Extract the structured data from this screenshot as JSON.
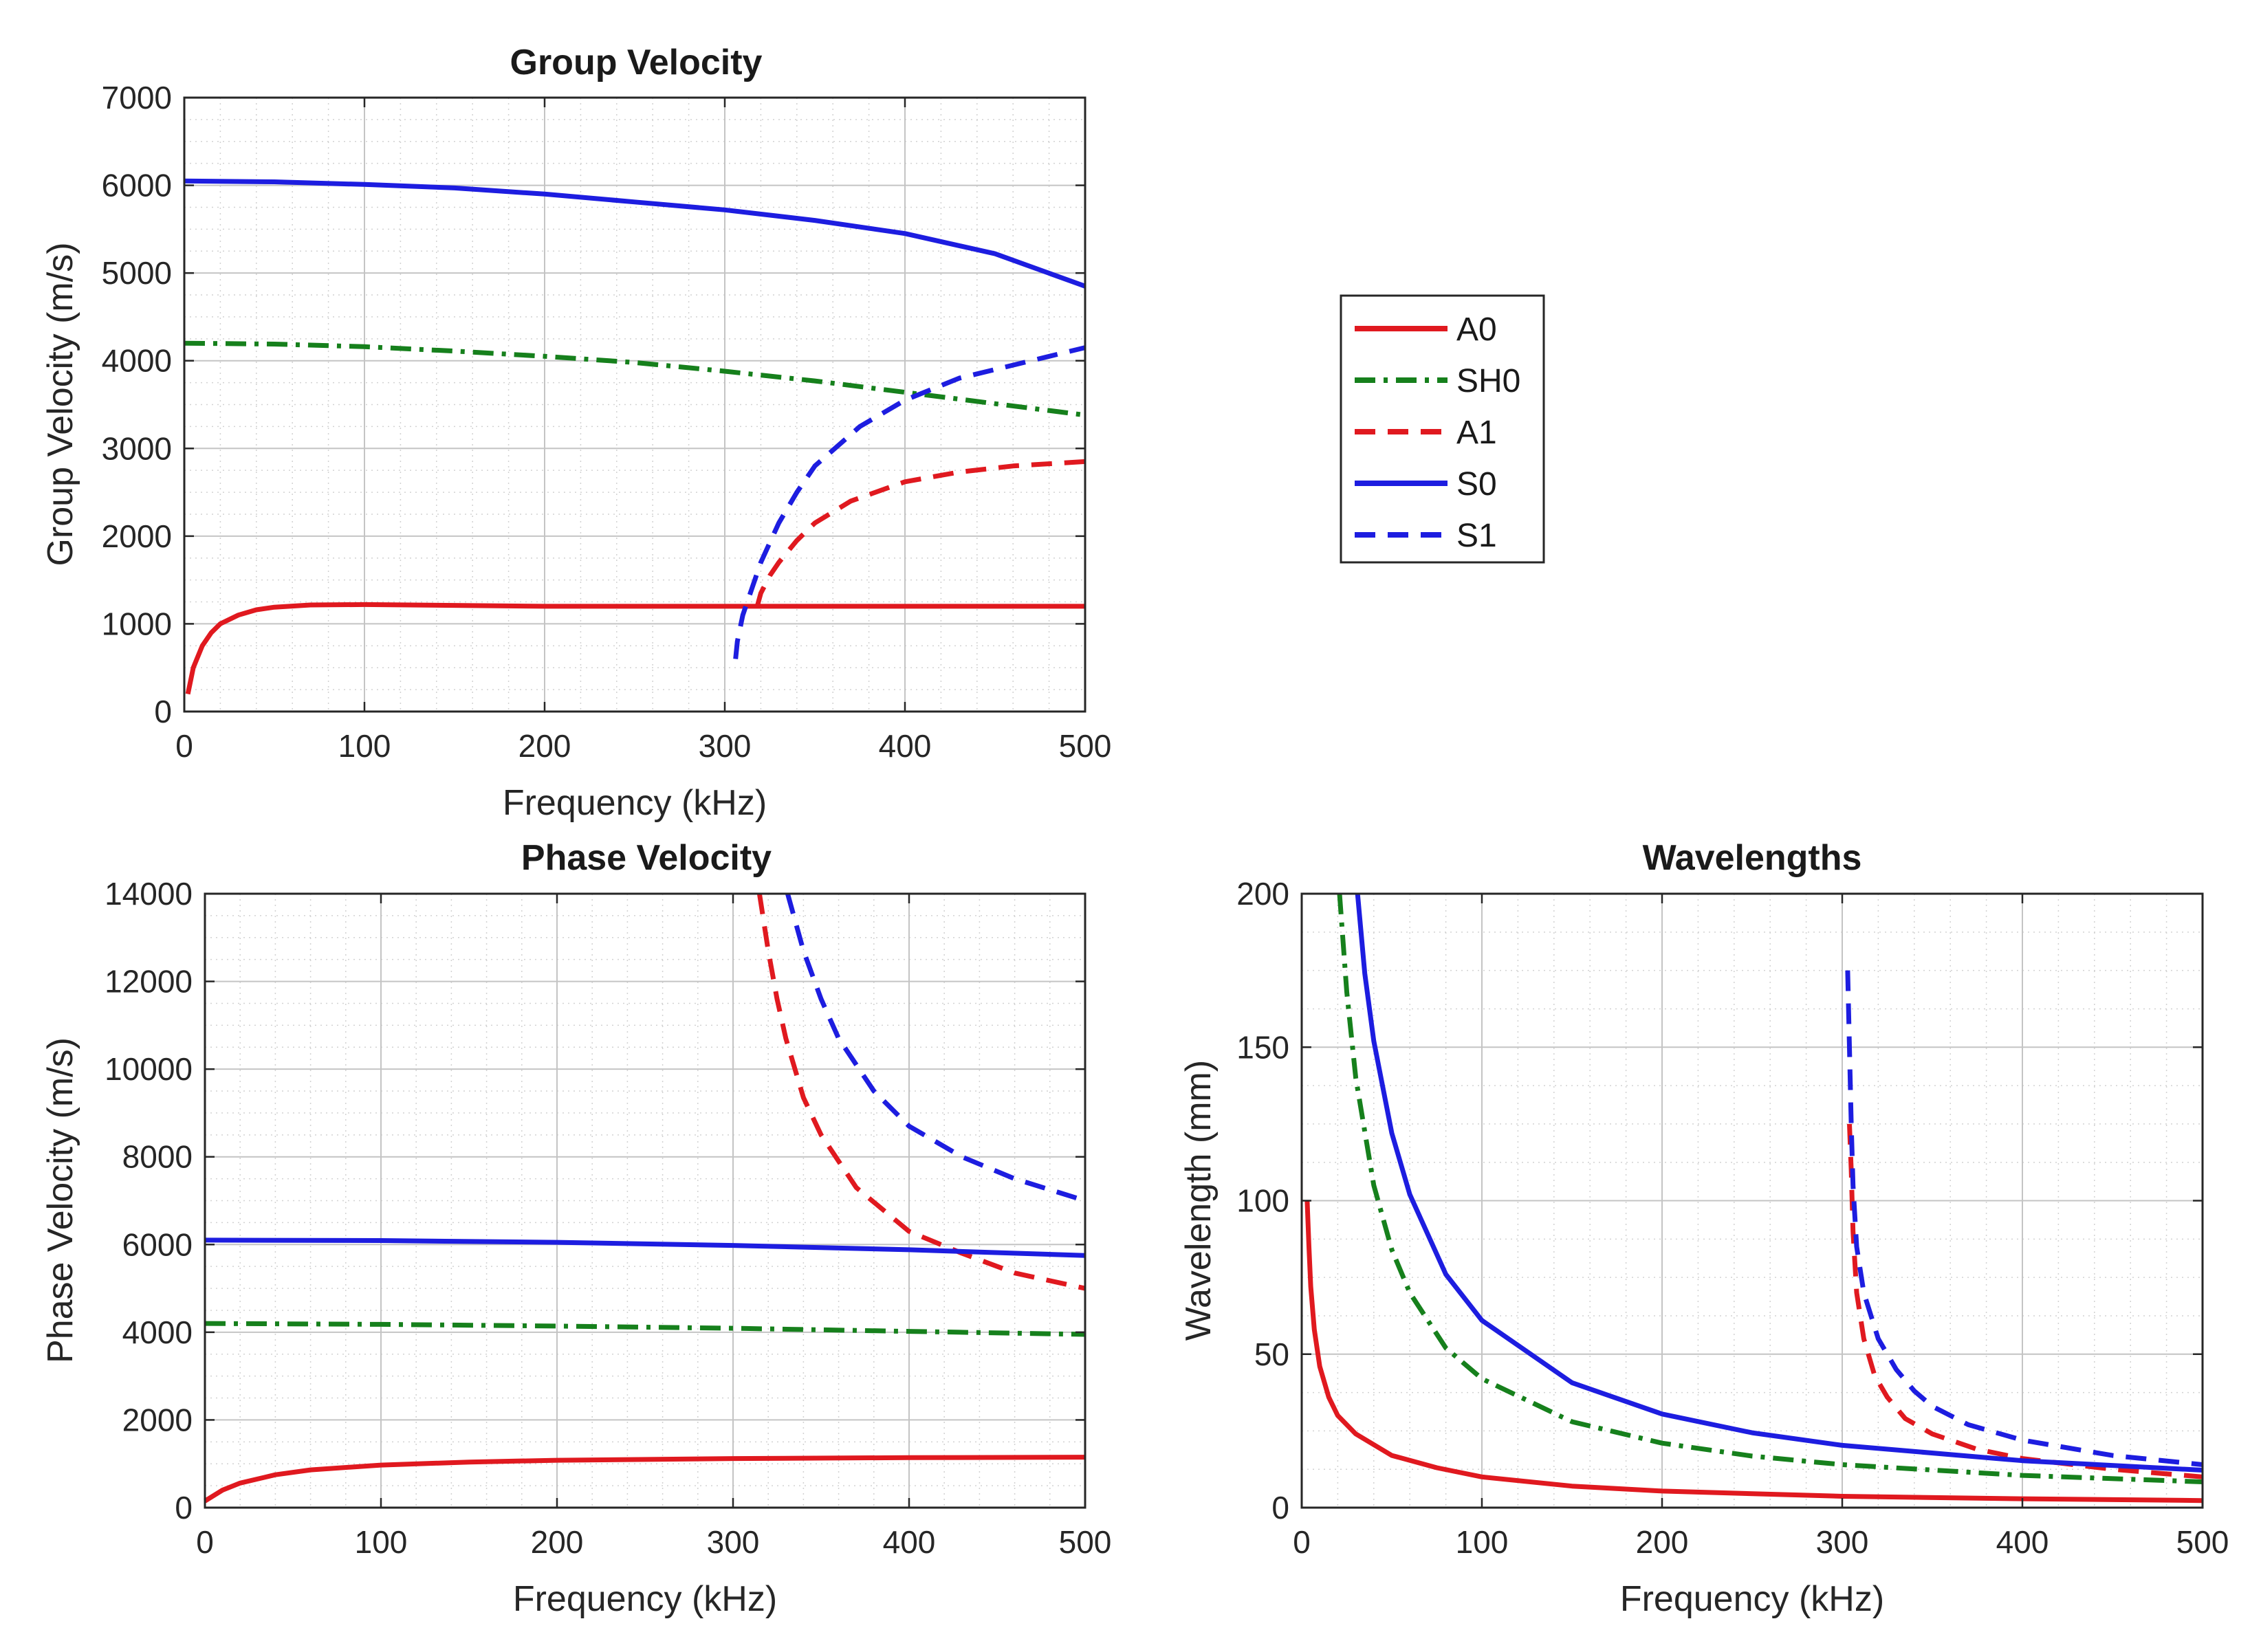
{
  "figure": {
    "legend_position": "right of top panel"
  },
  "legend": [
    {
      "label": "A0",
      "color": "#e0191f",
      "style": "solid"
    },
    {
      "label": "SH0",
      "color": "#16801c",
      "style": "dashdot"
    },
    {
      "label": "A1",
      "color": "#e0191f",
      "style": "dashed"
    },
    {
      "label": "S0",
      "color": "#1d1de0",
      "style": "solid"
    },
    {
      "label": "S1",
      "color": "#1d1de0",
      "style": "dashed"
    }
  ],
  "chart_data": [
    {
      "id": "group",
      "type": "line",
      "title": "Group Velocity",
      "xlabel": "Frequency (kHz)",
      "ylabel": "Group Velocity (m/s)",
      "xlim": [
        0,
        500
      ],
      "ylim": [
        0,
        7000
      ],
      "xticks": [
        0,
        100,
        200,
        300,
        400,
        500
      ],
      "yticks": [
        0,
        1000,
        2000,
        3000,
        4000,
        5000,
        6000,
        7000
      ],
      "grid": true,
      "series": [
        {
          "name": "A0",
          "color": "#e0191f",
          "style": "solid",
          "x": [
            2,
            5,
            10,
            15,
            20,
            30,
            40,
            50,
            70,
            100,
            150,
            200,
            300,
            400,
            500
          ],
          "y": [
            200,
            500,
            750,
            900,
            1000,
            1100,
            1160,
            1190,
            1215,
            1220,
            1210,
            1200,
            1200,
            1200,
            1200
          ]
        },
        {
          "name": "SH0",
          "color": "#16801c",
          "style": "dashdot",
          "x": [
            0,
            50,
            100,
            150,
            200,
            250,
            300,
            350,
            400,
            450,
            500
          ],
          "y": [
            4200,
            4190,
            4160,
            4110,
            4050,
            3980,
            3880,
            3770,
            3640,
            3510,
            3380
          ]
        },
        {
          "name": "A1",
          "color": "#e0191f",
          "style": "dashed",
          "x": [
            318,
            320,
            325,
            330,
            340,
            350,
            370,
            400,
            430,
            460,
            500
          ],
          "y": [
            1200,
            1350,
            1550,
            1700,
            1950,
            2150,
            2400,
            2620,
            2730,
            2800,
            2850
          ]
        },
        {
          "name": "S0",
          "color": "#1d1de0",
          "style": "solid",
          "x": [
            0,
            50,
            100,
            150,
            200,
            250,
            300,
            350,
            400,
            450,
            500
          ],
          "y": [
            6050,
            6040,
            6010,
            5970,
            5900,
            5810,
            5720,
            5600,
            5450,
            5220,
            4850
          ]
        },
        {
          "name": "S1",
          "color": "#1d1de0",
          "style": "dashed",
          "x": [
            306,
            307,
            310,
            315,
            320,
            330,
            340,
            350,
            375,
            400,
            430,
            460,
            500
          ],
          "y": [
            600,
            800,
            1100,
            1400,
            1700,
            2150,
            2500,
            2800,
            3250,
            3550,
            3800,
            3950,
            4150
          ]
        }
      ]
    },
    {
      "id": "phase",
      "type": "line",
      "title": "Phase Velocity",
      "xlabel": "Frequency (kHz)",
      "ylabel": "Phase Velocity (m/s)",
      "xlim": [
        0,
        500
      ],
      "ylim": [
        0,
        14000
      ],
      "xticks": [
        0,
        100,
        200,
        300,
        400,
        500
      ],
      "yticks": [
        0,
        2000,
        4000,
        6000,
        8000,
        10000,
        12000,
        14000
      ],
      "grid": true,
      "series": [
        {
          "name": "A0",
          "color": "#e0191f",
          "style": "solid",
          "x": [
            0,
            10,
            20,
            40,
            60,
            100,
            150,
            200,
            300,
            400,
            500
          ],
          "y": [
            150,
            400,
            560,
            750,
            860,
            970,
            1040,
            1080,
            1120,
            1140,
            1150
          ]
        },
        {
          "name": "SH0",
          "color": "#16801c",
          "style": "dashdot",
          "x": [
            0,
            100,
            200,
            300,
            400,
            500
          ],
          "y": [
            4200,
            4180,
            4140,
            4090,
            4020,
            3950
          ]
        },
        {
          "name": "A1",
          "color": "#e0191f",
          "style": "dashed",
          "x": [
            315,
            320,
            325,
            330,
            340,
            350,
            370,
            400,
            430,
            460,
            500
          ],
          "y": [
            14000,
            12700,
            11600,
            10700,
            9350,
            8500,
            7300,
            6300,
            5800,
            5350,
            5000
          ]
        },
        {
          "name": "S0",
          "color": "#1d1de0",
          "style": "solid",
          "x": [
            0,
            100,
            200,
            300,
            400,
            500
          ],
          "y": [
            6100,
            6090,
            6050,
            5980,
            5880,
            5750
          ]
        },
        {
          "name": "S1",
          "color": "#1d1de0",
          "style": "dashed",
          "x": [
            331,
            340,
            350,
            360,
            380,
            400,
            430,
            460,
            500
          ],
          "y": [
            14000,
            12700,
            11600,
            10700,
            9500,
            8700,
            8000,
            7500,
            7000
          ]
        }
      ]
    },
    {
      "id": "wave",
      "type": "line",
      "title": "Wavelengths",
      "xlabel": "Frequency (kHz)",
      "ylabel": "Wavelength (mm)",
      "xlim": [
        0,
        500
      ],
      "ylim": [
        0,
        200
      ],
      "xticks": [
        0,
        100,
        200,
        300,
        400,
        500
      ],
      "yticks": [
        0,
        50,
        100,
        150,
        200
      ],
      "grid": true,
      "series": [
        {
          "name": "A0",
          "color": "#e0191f",
          "style": "solid",
          "x": [
            3,
            4,
            5,
            7,
            10,
            15,
            20,
            30,
            50,
            75,
            100,
            150,
            200,
            300,
            400,
            500
          ],
          "y": [
            100,
            85,
            72,
            58,
            46,
            36,
            30,
            24,
            17,
            13,
            10,
            7,
            5.4,
            3.7,
            2.9,
            2.3
          ]
        },
        {
          "name": "SH0",
          "color": "#16801c",
          "style": "dashdot",
          "x": [
            21,
            25,
            30,
            40,
            50,
            60,
            80,
            100,
            150,
            200,
            250,
            300,
            400,
            500
          ],
          "y": [
            200,
            168,
            140,
            105,
            84,
            70,
            52,
            42,
            28,
            21,
            16.8,
            14,
            10.5,
            8.4
          ]
        },
        {
          "name": "A1",
          "color": "#e0191f",
          "style": "dashed",
          "x": [
            304,
            305,
            306,
            308,
            312,
            318,
            325,
            335,
            350,
            375,
            400,
            450,
            500
          ],
          "y": [
            125,
            110,
            90,
            70,
            55,
            43,
            36,
            29,
            24,
            19,
            16,
            12.5,
            10
          ]
        },
        {
          "name": "S0",
          "color": "#1d1de0",
          "style": "solid",
          "x": [
            31,
            35,
            40,
            50,
            60,
            80,
            100,
            150,
            200,
            250,
            300,
            400,
            500
          ],
          "y": [
            200,
            174,
            152,
            122,
            102,
            76,
            61,
            40.7,
            30.5,
            24.4,
            20.3,
            15.3,
            12.2
          ]
        },
        {
          "name": "S1",
          "color": "#1d1de0",
          "style": "dashed",
          "x": [
            303,
            304,
            305,
            306,
            308,
            312,
            320,
            330,
            340,
            350,
            370,
            400,
            450,
            500
          ],
          "y": [
            175,
            150,
            125,
            105,
            85,
            70,
            55,
            45,
            38,
            33,
            27,
            22,
            17,
            14
          ]
        }
      ]
    }
  ]
}
